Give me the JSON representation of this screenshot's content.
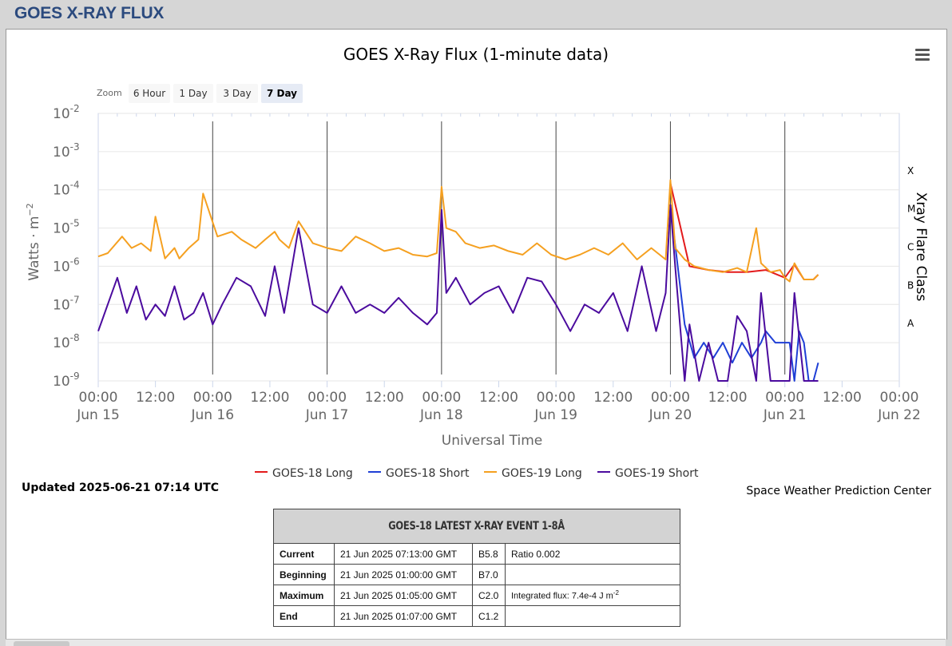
{
  "page": {
    "title": "GOES X-RAY FLUX"
  },
  "zoom": {
    "label": "Zoom",
    "buttons": [
      "6 Hour",
      "1 Day",
      "3 Day",
      "7 Day"
    ],
    "active": "7 Day"
  },
  "colors": {
    "goes18_long": "#e31a1c",
    "goes18_short": "#1f3fd6",
    "goes19_long": "#f5a020",
    "goes19_short": "#4b0b9e"
  },
  "chart_data": {
    "type": "line",
    "title": "GOES X-Ray Flux (1-minute data)",
    "xlabel": "Universal Time",
    "ylabel": "Watts · m-2",
    "y2label": "Xray Flare Class",
    "y_scale": "log",
    "ylim": [
      1e-09,
      0.01
    ],
    "xlim": [
      "2025-06-15 00:00",
      "2025-06-22 00:00"
    ],
    "y_ticks": [
      {
        "base": "10",
        "exp": "-2"
      },
      {
        "base": "10",
        "exp": "-3"
      },
      {
        "base": "10",
        "exp": "-4"
      },
      {
        "base": "10",
        "exp": "-5"
      },
      {
        "base": "10",
        "exp": "-6"
      },
      {
        "base": "10",
        "exp": "-7"
      },
      {
        "base": "10",
        "exp": "-8"
      },
      {
        "base": "10",
        "exp": "-9"
      }
    ],
    "flare_classes": [
      {
        "label": "X",
        "flux": 0.0001
      },
      {
        "label": "M",
        "flux": 1e-05
      },
      {
        "label": "C",
        "flux": 1e-06
      },
      {
        "label": "B",
        "flux": 1e-07
      },
      {
        "label": "A",
        "flux": 1e-08
      }
    ],
    "x_ticks": [
      {
        "time": "00:00",
        "date": "Jun 15"
      },
      {
        "time": "12:00",
        "date": ""
      },
      {
        "time": "00:00",
        "date": "Jun 16"
      },
      {
        "time": "12:00",
        "date": ""
      },
      {
        "time": "00:00",
        "date": "Jun 17"
      },
      {
        "time": "12:00",
        "date": ""
      },
      {
        "time": "00:00",
        "date": "Jun 18"
      },
      {
        "time": "12:00",
        "date": ""
      },
      {
        "time": "00:00",
        "date": "Jun 19"
      },
      {
        "time": "12:00",
        "date": ""
      },
      {
        "time": "00:00",
        "date": "Jun 20"
      },
      {
        "time": "12:00",
        "date": ""
      },
      {
        "time": "00:00",
        "date": "Jun 21"
      },
      {
        "time": "12:00",
        "date": ""
      },
      {
        "time": "00:00",
        "date": "Jun 22"
      }
    ],
    "grid": true,
    "legend_position": "bottom-center",
    "series": [
      {
        "name": "GOES-19 Long",
        "x": [
          "2025-06-15 00:00",
          "2025-06-15 02:00",
          "2025-06-15 05:00",
          "2025-06-15 07:00",
          "2025-06-15 09:00",
          "2025-06-15 11:00",
          "2025-06-15 12:00",
          "2025-06-15 14:00",
          "2025-06-15 16:00",
          "2025-06-15 17:00",
          "2025-06-15 19:00",
          "2025-06-15 21:00",
          "2025-06-15 22:00",
          "2025-06-16 01:00",
          "2025-06-16 04:00",
          "2025-06-16 06:00",
          "2025-06-16 09:00",
          "2025-06-16 11:00",
          "2025-06-16 13:00",
          "2025-06-16 14:00",
          "2025-06-16 16:00",
          "2025-06-16 18:00",
          "2025-06-16 21:00",
          "2025-06-17 00:00",
          "2025-06-17 03:00",
          "2025-06-17 06:00",
          "2025-06-17 09:00",
          "2025-06-17 12:00",
          "2025-06-17 15:00",
          "2025-06-17 18:00",
          "2025-06-17 21:00",
          "2025-06-17 23:00",
          "2025-06-18 00:00",
          "2025-06-18 01:00",
          "2025-06-18 03:00",
          "2025-06-18 05:00",
          "2025-06-18 08:00",
          "2025-06-18 11:00",
          "2025-06-18 14:00",
          "2025-06-18 17:00",
          "2025-06-18 20:00",
          "2025-06-18 23:00",
          "2025-06-19 02:00",
          "2025-06-19 05:00",
          "2025-06-19 08:00",
          "2025-06-19 11:00",
          "2025-06-19 14:00",
          "2025-06-19 17:00",
          "2025-06-19 20:00",
          "2025-06-19 23:00",
          "2025-06-20 00:00",
          "2025-06-20 01:00",
          "2025-06-20 03:00",
          "2025-06-20 05:00",
          "2025-06-20 08:00",
          "2025-06-20 11:00",
          "2025-06-20 14:00",
          "2025-06-20 16:00",
          "2025-06-20 18:00",
          "2025-06-20 19:00",
          "2025-06-20 21:00",
          "2025-06-20 23:00",
          "2025-06-21 00:00",
          "2025-06-21 01:00",
          "2025-06-21 02:00",
          "2025-06-21 04:00",
          "2025-06-21 06:00",
          "2025-06-21 07:00"
        ],
        "values": [
          1.8e-06,
          2.2e-06,
          6e-06,
          3e-06,
          4e-06,
          2.5e-06,
          2e-05,
          1.6e-06,
          3e-06,
          1.6e-06,
          3e-06,
          5e-06,
          8e-05,
          6e-06,
          8e-06,
          5e-06,
          3e-06,
          5e-06,
          8e-06,
          5e-06,
          3e-06,
          1.5e-05,
          4e-06,
          3e-06,
          2.5e-06,
          6e-06,
          4e-06,
          2.5e-06,
          3e-06,
          2e-06,
          1.8e-06,
          2.2e-06,
          0.00012,
          1e-05,
          8e-06,
          4e-06,
          3e-06,
          3.5e-06,
          2.5e-06,
          2e-06,
          4e-06,
          2e-06,
          1.5e-06,
          2e-06,
          3e-06,
          2e-06,
          4e-06,
          1.5e-06,
          3e-06,
          1.5e-06,
          0.00018,
          3e-06,
          1.5e-06,
          1e-06,
          8e-07,
          7e-07,
          9e-07,
          7e-07,
          1e-05,
          1.2e-06,
          7e-07,
          8e-07,
          5e-07,
          4e-07,
          1.2e-06,
          4.5e-07,
          4.5e-07,
          6e-07
        ]
      },
      {
        "name": "GOES-19 Short",
        "x": [
          "2025-06-15 00:00",
          "2025-06-15 02:00",
          "2025-06-15 04:00",
          "2025-06-15 06:00",
          "2025-06-15 08:00",
          "2025-06-15 10:00",
          "2025-06-15 12:00",
          "2025-06-15 14:00",
          "2025-06-15 16:00",
          "2025-06-15 18:00",
          "2025-06-15 20:00",
          "2025-06-15 22:00",
          "2025-06-16 00:00",
          "2025-06-16 02:00",
          "2025-06-16 05:00",
          "2025-06-16 08:00",
          "2025-06-16 11:00",
          "2025-06-16 13:00",
          "2025-06-16 15:00",
          "2025-06-16 18:00",
          "2025-06-16 21:00",
          "2025-06-17 00:00",
          "2025-06-17 03:00",
          "2025-06-17 06:00",
          "2025-06-17 09:00",
          "2025-06-17 12:00",
          "2025-06-17 15:00",
          "2025-06-17 18:00",
          "2025-06-17 21:00",
          "2025-06-17 23:00",
          "2025-06-18 00:00",
          "2025-06-18 01:00",
          "2025-06-18 03:00",
          "2025-06-18 06:00",
          "2025-06-18 09:00",
          "2025-06-18 12:00",
          "2025-06-18 15:00",
          "2025-06-18 18:00",
          "2025-06-18 21:00",
          "2025-06-19 00:00",
          "2025-06-19 03:00",
          "2025-06-19 06:00",
          "2025-06-19 09:00",
          "2025-06-19 12:00",
          "2025-06-19 15:00",
          "2025-06-19 18:00",
          "2025-06-19 21:00",
          "2025-06-19 23:00",
          "2025-06-20 00:00",
          "2025-06-20 01:00",
          "2025-06-20 02:00",
          "2025-06-20 03:00",
          "2025-06-20 04:00",
          "2025-06-20 06:00",
          "2025-06-20 08:00",
          "2025-06-20 10:00",
          "2025-06-20 12:00",
          "2025-06-20 14:00",
          "2025-06-20 16:00",
          "2025-06-20 18:00",
          "2025-06-20 19:00",
          "2025-06-20 21:00",
          "2025-06-20 23:00",
          "2025-06-21 00:00",
          "2025-06-21 01:00",
          "2025-06-21 02:00",
          "2025-06-21 04:00",
          "2025-06-21 06:00",
          "2025-06-21 07:00"
        ],
        "values": [
          2e-08,
          1e-07,
          5e-07,
          6e-08,
          3e-07,
          4e-08,
          1e-07,
          5e-08,
          3e-07,
          4e-08,
          6e-08,
          2e-07,
          3e-08,
          1e-07,
          5e-07,
          3e-07,
          5e-08,
          1e-06,
          6e-08,
          1e-05,
          1e-07,
          6e-08,
          3e-07,
          6e-08,
          1e-07,
          6e-08,
          1.5e-07,
          6e-08,
          3e-08,
          6e-08,
          3e-05,
          2e-07,
          5e-07,
          1e-07,
          2e-07,
          3e-07,
          6e-08,
          5e-07,
          4e-07,
          1e-07,
          2e-08,
          1e-07,
          6e-08,
          2e-07,
          2e-08,
          1e-06,
          2e-08,
          2e-07,
          4e-05,
          1e-06,
          3e-08,
          1e-09,
          3e-08,
          1e-09,
          1e-08,
          1e-09,
          1e-09,
          5e-08,
          2e-08,
          1e-09,
          2e-07,
          1e-09,
          1e-09,
          1e-09,
          1e-09,
          2e-07,
          1e-09,
          1e-09,
          1e-09
        ]
      },
      {
        "name": "GOES-18 Long",
        "x": [
          "2025-06-20 00:00",
          "2025-06-20 04:00",
          "2025-06-20 08:00",
          "2025-06-20 12:00",
          "2025-06-20 16:00",
          "2025-06-20 20:00",
          "2025-06-21 00:00",
          "2025-06-21 02:00",
          "2025-06-21 04:00",
          "2025-06-21 06:00",
          "2025-06-21 07:00"
        ],
        "values": [
          0.00015,
          1e-06,
          8e-07,
          7e-07,
          7e-07,
          8e-07,
          5e-07,
          1.1e-06,
          4.5e-07,
          4.5e-07,
          6e-07
        ]
      },
      {
        "name": "GOES-18 Short",
        "x": [
          "2025-06-20 00:00",
          "2025-06-20 03:00",
          "2025-06-20 05:00",
          "2025-06-20 07:00",
          "2025-06-20 09:00",
          "2025-06-20 11:00",
          "2025-06-20 13:00",
          "2025-06-20 15:00",
          "2025-06-20 17:00",
          "2025-06-20 19:00",
          "2025-06-20 20:00",
          "2025-06-20 22:00",
          "2025-06-21 00:00",
          "2025-06-21 01:00",
          "2025-06-21 02:00",
          "2025-06-21 03:00",
          "2025-06-21 04:00",
          "2025-06-21 05:00",
          "2025-06-21 06:00",
          "2025-06-21 07:00"
        ],
        "values": [
          4e-05,
          3e-08,
          4e-09,
          1e-08,
          4e-09,
          1e-08,
          3e-09,
          1e-08,
          4e-09,
          1e-08,
          2e-08,
          1e-08,
          1e-08,
          1e-08,
          1e-09,
          2e-08,
          1e-08,
          1e-09,
          1e-09,
          3e-09
        ]
      }
    ]
  },
  "legend": {
    "items": [
      "GOES-18 Long",
      "GOES-18 Short",
      "GOES-19 Long",
      "GOES-19 Short"
    ]
  },
  "footer": {
    "updated": "Updated 2025-06-21 07:14 UTC",
    "credit": "Space Weather Prediction Center"
  },
  "event_table": {
    "title": "GOES-18 LATEST X-RAY EVENT 1-8Å",
    "rows": [
      {
        "label": "Current",
        "time": "21 Jun 2025 07:13:00 GMT",
        "class": "B5.8",
        "note": "Ratio 0.002"
      },
      {
        "label": "Beginning",
        "time": "21 Jun 2025 01:00:00 GMT",
        "class": "B7.0",
        "note": ""
      },
      {
        "label": "Maximum",
        "time": "21 Jun 2025 01:05:00 GMT",
        "class": "C2.0",
        "note": "Integrated flux: 7.4e-4 J m",
        "note_sup": "-2"
      },
      {
        "label": "End",
        "time": "21 Jun 2025 01:07:00 GMT",
        "class": "C1.2",
        "note": ""
      }
    ]
  }
}
